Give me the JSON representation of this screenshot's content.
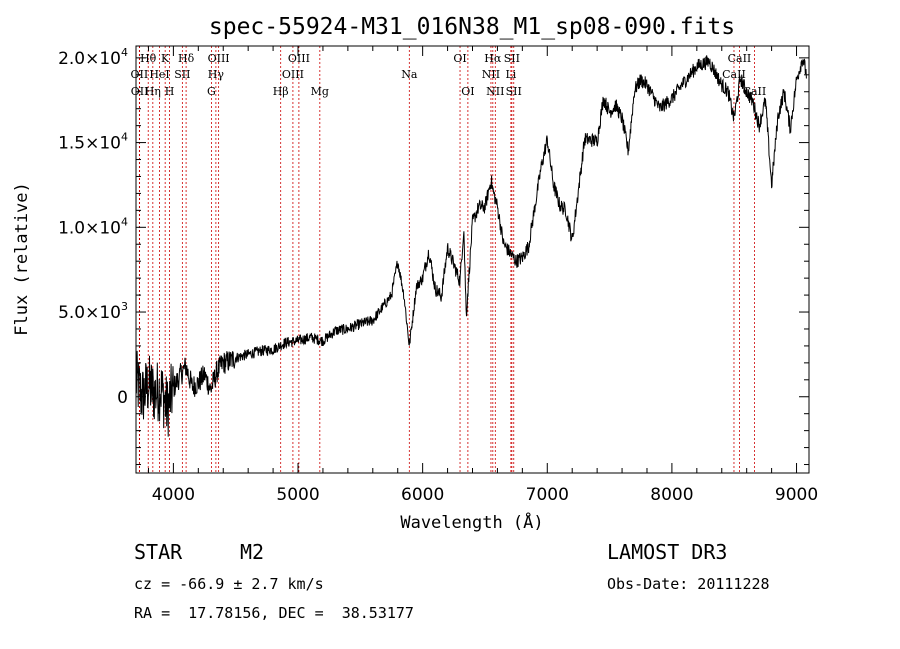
{
  "chart_data": {
    "type": "line",
    "title": "spec-55924-M31_016N38_M1_sp08-090.fits",
    "xlabel": "Wavelength (Å)",
    "ylabel": "Flux (relative)",
    "xlim": [
      3700,
      9100
    ],
    "ylim": [
      -4500,
      20700
    ],
    "xticks": [
      4000,
      5000,
      6000,
      7000,
      8000,
      9000
    ],
    "yticks": [
      {
        "value": 0,
        "mantissa": "0",
        "exponent": ""
      },
      {
        "value": 5000,
        "mantissa": "5.0×10",
        "exponent": "3"
      },
      {
        "value": 10000,
        "mantissa": "1.0×10",
        "exponent": "4"
      },
      {
        "value": 15000,
        "mantissa": "1.5×10",
        "exponent": "4"
      },
      {
        "value": 20000,
        "mantissa": "2.0×10",
        "exponent": "4"
      }
    ],
    "spectrum": {
      "name": "flux",
      "x": [
        3700,
        3750,
        3800,
        3850,
        3900,
        3950,
        4000,
        4050,
        4100,
        4150,
        4200,
        4250,
        4300,
        4350,
        4400,
        4450,
        4500,
        4600,
        4700,
        4800,
        4850,
        4900,
        5000,
        5100,
        5200,
        5300,
        5400,
        5500,
        5600,
        5700,
        5750,
        5800,
        5850,
        5893,
        5950,
        6000,
        6050,
        6100,
        6150,
        6200,
        6250,
        6300,
        6330,
        6350,
        6400,
        6450,
        6500,
        6550,
        6563,
        6600,
        6650,
        6700,
        6750,
        6800,
        6850,
        6900,
        6950,
        7000,
        7050,
        7100,
        7150,
        7200,
        7300,
        7400,
        7450,
        7500,
        7550,
        7600,
        7650,
        7700,
        7750,
        7800,
        7900,
        8000,
        8100,
        8200,
        8300,
        8400,
        8450,
        8498,
        8550,
        8600,
        8650,
        8700,
        8750,
        8800,
        8850,
        8900,
        8950,
        9000,
        9050,
        9080
      ],
      "y": [
        1000,
        0,
        700,
        200,
        500,
        -700,
        500,
        1200,
        1800,
        600,
        800,
        1300,
        400,
        1500,
        2000,
        2100,
        2300,
        2500,
        2700,
        2800,
        3000,
        3200,
        3300,
        3500,
        3300,
        3900,
        4000,
        4300,
        4500,
        5500,
        6000,
        8000,
        6000,
        3000,
        6500,
        7000,
        8600,
        6400,
        5900,
        8800,
        7800,
        6800,
        10000,
        4800,
        10300,
        11200,
        11200,
        12800,
        12200,
        11200,
        9000,
        8500,
        8000,
        8200,
        8900,
        11200,
        13500,
        15200,
        12500,
        11300,
        11000,
        9200,
        15200,
        15100,
        17600,
        16800,
        17200,
        16400,
        14500,
        18100,
        18700,
        18400,
        17000,
        17600,
        18600,
        19500,
        19800,
        18400,
        18000,
        16400,
        18800,
        18000,
        17400,
        16000,
        17500,
        12500,
        16500,
        18000,
        15800,
        18700,
        20000,
        19000
      ]
    },
    "emission_lines": [
      {
        "name": "Hθ",
        "wavelength": 3798,
        "row": 0
      },
      {
        "name": "OII",
        "wavelength": 3727,
        "row": 1
      },
      {
        "name": "OII",
        "wavelength": 3729,
        "row": 2
      },
      {
        "name": "HeI",
        "wavelength": 3889,
        "row": 1
      },
      {
        "name": "Hη",
        "wavelength": 3835,
        "row": 2
      },
      {
        "name": "K",
        "wavelength": 3934,
        "row": 0
      },
      {
        "name": "H",
        "wavelength": 3969,
        "row": 2
      },
      {
        "name": "SII",
        "wavelength": 4072,
        "row": 1
      },
      {
        "name": "Hδ",
        "wavelength": 4102,
        "row": 0
      },
      {
        "name": "OIII",
        "wavelength": 4363,
        "row": 0
      },
      {
        "name": "Hγ",
        "wavelength": 4341,
        "row": 1
      },
      {
        "name": "G",
        "wavelength": 4305,
        "row": 2
      },
      {
        "name": "OIII",
        "wavelength": 5007,
        "row": 0
      },
      {
        "name": "OIII",
        "wavelength": 4959,
        "row": 1
      },
      {
        "name": "Hβ",
        "wavelength": 4861,
        "row": 2
      },
      {
        "name": "Mg",
        "wavelength": 5175,
        "row": 2
      },
      {
        "name": "Na",
        "wavelength": 5893,
        "row": 1
      },
      {
        "name": "OI",
        "wavelength": 6300,
        "row": 0
      },
      {
        "name": "OI",
        "wavelength": 6363,
        "row": 2
      },
      {
        "name": "Hα",
        "wavelength": 6563,
        "row": 0
      },
      {
        "name": "SII",
        "wavelength": 6716,
        "row": 0
      },
      {
        "name": "NII",
        "wavelength": 6548,
        "row": 1
      },
      {
        "name": "Li",
        "wavelength": 6708,
        "row": 1
      },
      {
        "name": "NII",
        "wavelength": 6583,
        "row": 2
      },
      {
        "name": "SII",
        "wavelength": 6731,
        "row": 2
      },
      {
        "name": "CaII",
        "wavelength": 8542,
        "row": 0
      },
      {
        "name": "CaII",
        "wavelength": 8498,
        "row": 1
      },
      {
        "name": "CaII",
        "wavelength": 8662,
        "row": 2
      }
    ]
  },
  "info": {
    "class_label": "STAR",
    "subclass": "M2",
    "survey": "LAMOST DR3",
    "redshift": "cz = -66.9 ± 2.7 km/s",
    "obs_date": "Obs-Date: 20111228",
    "coords": "RA =  17.78156, DEC =  38.53177"
  },
  "colors": {
    "line_marker": "#cc0000",
    "spectrum": "#000000",
    "axes": "#000000"
  }
}
